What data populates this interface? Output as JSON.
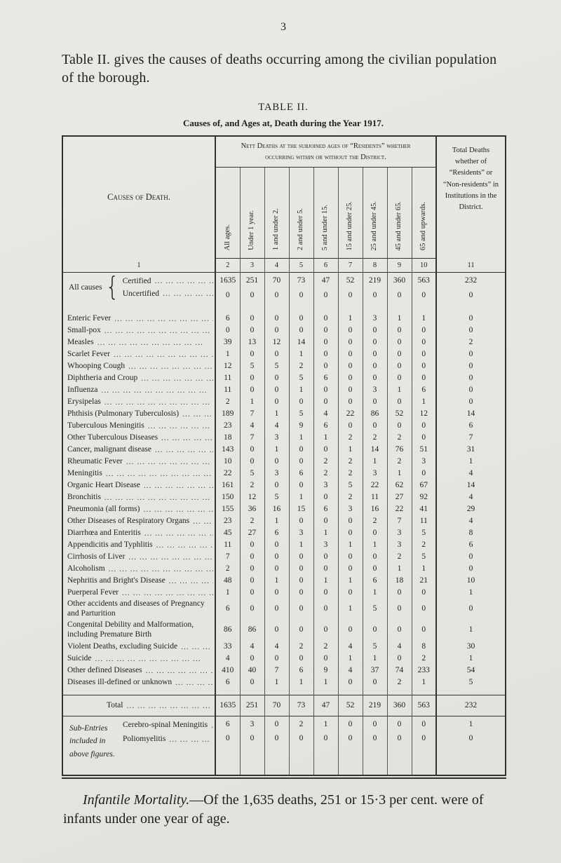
{
  "page": {
    "number": "3",
    "intro": "Table II. gives the causes of deaths occurring among the civilian population of the borough.",
    "table_label": "TABLE II.",
    "table_caption": "Causes of, and Ages at, Death during the Year 1917."
  },
  "table": {
    "causes_header": "Causes of Death.",
    "group_header": "Nett Deaths at the subjoined ages of “Residents” whether occurring within or without the District.",
    "total_header": "Total Deaths whether of “Residents” or “Non-residents” in Institutions in the District.",
    "age_columns": [
      "All ages.",
      "Under 1 year.",
      "1 and under 2.",
      "2 and under 5.",
      "5 and under 15.",
      "15 and under 25.",
      "25 and under 45.",
      "45 and under 65.",
      "65 and upwards."
    ],
    "column_numbers": [
      "1",
      "2",
      "3",
      "4",
      "5",
      "6",
      "7",
      "8",
      "9",
      "10",
      "11"
    ],
    "all_causes": {
      "label": "All causes",
      "rows": [
        {
          "label": "Certified",
          "values": [
            "1635",
            "251",
            "70",
            "73",
            "47",
            "52",
            "219",
            "360",
            "563",
            "232"
          ]
        },
        {
          "label": "Uncertified",
          "values": [
            "0",
            "0",
            "0",
            "0",
            "0",
            "0",
            "0",
            "0",
            "0",
            "0"
          ]
        }
      ]
    },
    "rows": [
      {
        "label": "Enteric Fever",
        "values": [
          "6",
          "0",
          "0",
          "0",
          "0",
          "1",
          "3",
          "1",
          "1",
          "0"
        ]
      },
      {
        "label": "Small-pox",
        "values": [
          "0",
          "0",
          "0",
          "0",
          "0",
          "0",
          "0",
          "0",
          "0",
          "0"
        ]
      },
      {
        "label": "Measles",
        "values": [
          "39",
          "13",
          "12",
          "14",
          "0",
          "0",
          "0",
          "0",
          "0",
          "2"
        ]
      },
      {
        "label": "Scarlet Fever",
        "values": [
          "1",
          "0",
          "0",
          "1",
          "0",
          "0",
          "0",
          "0",
          "0",
          "0"
        ]
      },
      {
        "label": "Whooping Cough",
        "values": [
          "12",
          "5",
          "5",
          "2",
          "0",
          "0",
          "0",
          "0",
          "0",
          "0"
        ]
      },
      {
        "label": "Diphtheria and Croup",
        "values": [
          "11",
          "0",
          "0",
          "5",
          "6",
          "0",
          "0",
          "0",
          "0",
          "0"
        ]
      },
      {
        "label": "Influenza",
        "values": [
          "11",
          "0",
          "0",
          "1",
          "0",
          "0",
          "3",
          "1",
          "6",
          "0"
        ]
      },
      {
        "label": "Erysipelas",
        "values": [
          "2",
          "1",
          "0",
          "0",
          "0",
          "0",
          "0",
          "0",
          "1",
          "0"
        ]
      },
      {
        "label": "Phthisis (Pulmonary Tuberculosis)",
        "values": [
          "189",
          "7",
          "1",
          "5",
          "4",
          "22",
          "86",
          "52",
          "12",
          "14"
        ]
      },
      {
        "label": "Tuberculous Meningitis",
        "values": [
          "23",
          "4",
          "4",
          "9",
          "6",
          "0",
          "0",
          "0",
          "0",
          "6"
        ]
      },
      {
        "label": "Other Tuberculous Diseases",
        "values": [
          "18",
          "7",
          "3",
          "1",
          "1",
          "2",
          "2",
          "2",
          "0",
          "7"
        ]
      },
      {
        "label": "Cancer, malignant disease",
        "values": [
          "143",
          "0",
          "1",
          "0",
          "0",
          "1",
          "14",
          "76",
          "51",
          "31"
        ]
      },
      {
        "label": "Rheumatic Fever",
        "values": [
          "10",
          "0",
          "0",
          "0",
          "2",
          "2",
          "1",
          "2",
          "3",
          "1"
        ]
      },
      {
        "label": "Meningitis",
        "values": [
          "22",
          "5",
          "3",
          "6",
          "2",
          "2",
          "3",
          "1",
          "0",
          "4"
        ]
      },
      {
        "label": "Organic Heart Disease",
        "values": [
          "161",
          "2",
          "0",
          "0",
          "3",
          "5",
          "22",
          "62",
          "67",
          "14"
        ]
      },
      {
        "label": "Bronchitis",
        "values": [
          "150",
          "12",
          "5",
          "1",
          "0",
          "2",
          "11",
          "27",
          "92",
          "4"
        ]
      },
      {
        "label": "Pneumonia (all forms)",
        "values": [
          "155",
          "36",
          "16",
          "15",
          "6",
          "3",
          "16",
          "22",
          "41",
          "29"
        ]
      },
      {
        "label": "Other Diseases of Respiratory Organs",
        "values": [
          "23",
          "2",
          "1",
          "0",
          "0",
          "0",
          "2",
          "7",
          "11",
          "4"
        ]
      },
      {
        "label": "Diarrhœa and Enteritis",
        "values": [
          "45",
          "27",
          "6",
          "3",
          "1",
          "0",
          "0",
          "3",
          "5",
          "8"
        ]
      },
      {
        "label": "Appendicitis and Typhlitis",
        "values": [
          "11",
          "0",
          "0",
          "1",
          "3",
          "1",
          "1",
          "3",
          "2",
          "6"
        ]
      },
      {
        "label": "Cirrhosis of Liver",
        "values": [
          "7",
          "0",
          "0",
          "0",
          "0",
          "0",
          "0",
          "2",
          "5",
          "0"
        ]
      },
      {
        "label": "Alcoholism",
        "values": [
          "2",
          "0",
          "0",
          "0",
          "0",
          "0",
          "0",
          "1",
          "1",
          "0"
        ]
      },
      {
        "label": "Nephritis and Bright's Disease",
        "values": [
          "48",
          "0",
          "1",
          "0",
          "1",
          "1",
          "6",
          "18",
          "21",
          "10"
        ]
      },
      {
        "label": "Puerperal Fever",
        "values": [
          "1",
          "0",
          "0",
          "0",
          "0",
          "0",
          "1",
          "0",
          "0",
          "1"
        ]
      },
      {
        "label": "Other accidents and diseases of Pregnancy and Parturition",
        "values": [
          "6",
          "0",
          "0",
          "0",
          "0",
          "1",
          "5",
          "0",
          "0",
          "0"
        ]
      },
      {
        "label": "Congenital Debility and Malformation, including Premature Birth",
        "values": [
          "86",
          "86",
          "0",
          "0",
          "0",
          "0",
          "0",
          "0",
          "0",
          "1"
        ]
      },
      {
        "label": "Violent Deaths, excluding Suicide",
        "values": [
          "33",
          "4",
          "4",
          "2",
          "2",
          "4",
          "5",
          "4",
          "8",
          "30"
        ]
      },
      {
        "label": "Suicide",
        "values": [
          "4",
          "0",
          "0",
          "0",
          "0",
          "1",
          "1",
          "0",
          "2",
          "1"
        ]
      },
      {
        "label": "Other defined Diseases",
        "values": [
          "410",
          "40",
          "7",
          "6",
          "9",
          "4",
          "37",
          "74",
          "233",
          "54"
        ]
      },
      {
        "label": "Diseases ill-defined or unknown",
        "values": [
          "6",
          "0",
          "1",
          "1",
          "1",
          "0",
          "0",
          "2",
          "1",
          "5"
        ]
      }
    ],
    "total_row": {
      "label": "Total",
      "values": [
        "1635",
        "251",
        "70",
        "73",
        "47",
        "52",
        "219",
        "360",
        "563",
        "232"
      ]
    },
    "sub_entries": {
      "note": "Sub-Entries included in above figures.",
      "rows": [
        {
          "label": "Cerebro-spinal Meningitis",
          "values": [
            "6",
            "3",
            "0",
            "2",
            "1",
            "0",
            "0",
            "0",
            "0",
            "1"
          ]
        },
        {
          "label": "Poliomyelitis",
          "values": [
            "0",
            "0",
            "0",
            "0",
            "0",
            "0",
            "0",
            "0",
            "0",
            "0"
          ]
        }
      ]
    }
  },
  "footer": {
    "lead": "Infantile Mortality.",
    "text": "—Of the 1,635 deaths, 251 or 15·3 per cent. were of infants under one year of age."
  }
}
